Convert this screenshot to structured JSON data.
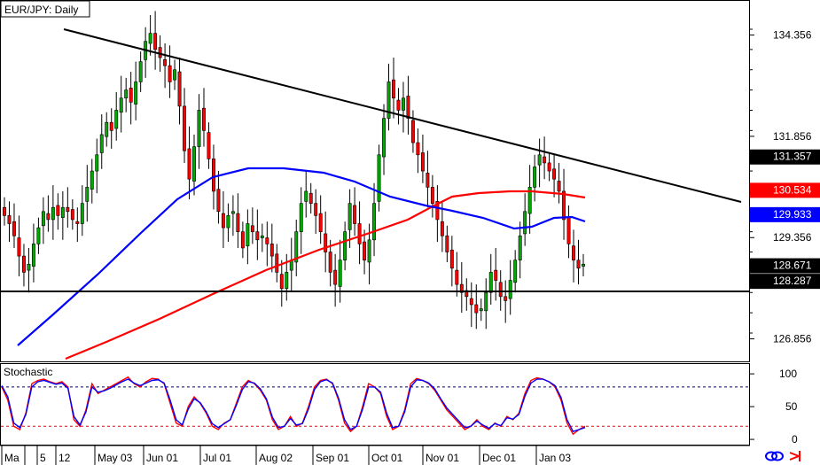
{
  "window": {
    "title": "EUR/JPY: Daily"
  },
  "chart_data": [
    {
      "type": "candlestick",
      "title": "EUR/JPY: Daily",
      "ylim": [
        126.3,
        135.2
      ],
      "price_ticks": [
        "134.356",
        "131.856",
        "129.356",
        "126.856"
      ],
      "price_tags": [
        {
          "label": "131.357",
          "value": 131.357,
          "bg": "#000000",
          "fg": "#ffffff"
        },
        {
          "label": "130.534",
          "value": 130.534,
          "bg": "#ff0000",
          "fg": "#ffffff"
        },
        {
          "label": "129.933",
          "value": 129.933,
          "bg": "#0000ff",
          "fg": "#ffffff"
        },
        {
          "label": "128.671",
          "value": 128.671,
          "bg": "#000000",
          "fg": "#ffffff"
        },
        {
          "label": "128.287",
          "value": 128.287,
          "bg": "#000000",
          "fg": "#ffffff"
        }
      ],
      "x_labels": [
        "Ma",
        "5",
        "12",
        "May 03",
        "Jun 01",
        "Jul 01",
        "Aug 02",
        "Sep 01",
        "Oct 01",
        "Nov 01",
        "Dec 01",
        "Jan 03"
      ],
      "closes": [
        129.9,
        129.7,
        129.4,
        128.9,
        128.5,
        128.7,
        129.2,
        129.6,
        130.0,
        129.8,
        130.1,
        129.9,
        130.1,
        130.0,
        129.8,
        129.7,
        130.2,
        130.6,
        131.0,
        131.4,
        131.9,
        132.2,
        132.0,
        132.5,
        132.8,
        133.0,
        132.7,
        133.2,
        133.7,
        134.2,
        134.4,
        134.0,
        133.8,
        133.6,
        133.2,
        133.5,
        132.6,
        131.5,
        130.8,
        131.6,
        132.5,
        132.0,
        131.3,
        130.5,
        130.0,
        129.6,
        129.9,
        130.0,
        129.5,
        129.1,
        129.7,
        129.5,
        129.3,
        129.4,
        129.2,
        128.9,
        128.5,
        128.1,
        128.5,
        128.8,
        129.5,
        130.2,
        130.5,
        130.2,
        129.9,
        129.5,
        129.0,
        128.5,
        128.2,
        128.8,
        129.5,
        130.2,
        129.7,
        129.2,
        128.8,
        129.3,
        130.2,
        131.4,
        132.3,
        133.2,
        132.8,
        132.5,
        132.8,
        132.3,
        131.7,
        131.4,
        131.0,
        130.6,
        130.2,
        129.8,
        129.4,
        129.0,
        128.6,
        128.2,
        128.0,
        127.9,
        127.7,
        127.5,
        127.6,
        128.0,
        128.5,
        128.3,
        127.9,
        127.8,
        128.3,
        128.8,
        129.4,
        130.0,
        130.6,
        131.1,
        131.4,
        131.2,
        131.0,
        130.8,
        130.5,
        129.8,
        129.2,
        128.8,
        128.6,
        128.7
      ],
      "sma_red": [
        [
          74,
          405
        ],
        [
          120,
          386
        ],
        [
          180,
          360
        ],
        [
          240,
          332
        ],
        [
          300,
          305
        ],
        [
          360,
          282
        ],
        [
          420,
          262
        ],
        [
          460,
          248
        ],
        [
          490,
          232
        ],
        [
          510,
          222
        ],
        [
          540,
          218
        ],
        [
          575,
          216
        ],
        [
          600,
          216
        ],
        [
          635,
          219
        ],
        [
          660,
          223
        ]
      ],
      "sma_blue": [
        [
          20,
          390
        ],
        [
          60,
          355
        ],
        [
          110,
          310
        ],
        [
          160,
          262
        ],
        [
          200,
          225
        ],
        [
          240,
          200
        ],
        [
          280,
          190
        ],
        [
          320,
          190
        ],
        [
          365,
          195
        ],
        [
          400,
          205
        ],
        [
          440,
          222
        ],
        [
          480,
          232
        ],
        [
          510,
          238
        ],
        [
          545,
          246
        ],
        [
          580,
          258
        ],
        [
          600,
          256
        ],
        [
          625,
          246
        ],
        [
          645,
          245
        ],
        [
          660,
          250
        ]
      ],
      "trendline": {
        "from": [
          72,
          33
        ],
        "to": [
          836,
          228
        ]
      },
      "support": {
        "from": [
          0,
          329
        ],
        "to": [
          845,
          329
        ]
      },
      "colors": {
        "up": "#00aa00",
        "down": "#ff0000",
        "wick": "#000000",
        "sma_red": "#ff0000",
        "sma_blue": "#0000ff",
        "trend": "#000000"
      }
    },
    {
      "type": "line",
      "title": "Stochastic",
      "ylim": [
        -8,
        115
      ],
      "y_ticks": [
        "100",
        "50",
        "0"
      ],
      "levels": [
        80,
        20
      ],
      "series": [
        {
          "color": "#ff0000",
          "values": [
            80,
            60,
            20,
            15,
            40,
            85,
            90,
            92,
            88,
            85,
            88,
            80,
            30,
            20,
            45,
            85,
            70,
            75,
            80,
            85,
            90,
            95,
            85,
            80,
            88,
            93,
            92,
            85,
            55,
            25,
            20,
            50,
            65,
            55,
            40,
            20,
            15,
            25,
            30,
            55,
            80,
            90,
            85,
            75,
            60,
            30,
            15,
            20,
            35,
            20,
            25,
            50,
            80,
            90,
            92,
            85,
            60,
            25,
            12,
            20,
            50,
            85,
            80,
            70,
            35,
            15,
            20,
            45,
            85,
            93,
            90,
            85,
            75,
            60,
            45,
            35,
            25,
            15,
            20,
            30,
            20,
            15,
            25,
            20,
            35,
            30,
            40,
            70,
            90,
            94,
            92,
            88,
            80,
            60,
            25,
            8,
            15,
            20
          ]
        },
        {
          "color": "#0000ff",
          "values": [
            82,
            65,
            25,
            18,
            38,
            80,
            88,
            90,
            87,
            84,
            86,
            78,
            35,
            22,
            42,
            80,
            72,
            74,
            78,
            83,
            88,
            92,
            86,
            82,
            86,
            90,
            91,
            86,
            60,
            30,
            22,
            46,
            62,
            56,
            42,
            24,
            18,
            24,
            30,
            52,
            76,
            88,
            86,
            77,
            62,
            34,
            18,
            20,
            32,
            22,
            24,
            46,
            76,
            88,
            91,
            86,
            63,
            30,
            15,
            20,
            46,
            80,
            80,
            72,
            40,
            18,
            20,
            42,
            80,
            91,
            90,
            86,
            77,
            62,
            48,
            38,
            28,
            18,
            20,
            28,
            22,
            17,
            24,
            21,
            33,
            31,
            38,
            66,
            86,
            92,
            92,
            88,
            82,
            64,
            30,
            12,
            15,
            18
          ]
        }
      ],
      "level_colors": {
        "upper": "#000080",
        "lower": "#ff0000"
      }
    }
  ]
}
